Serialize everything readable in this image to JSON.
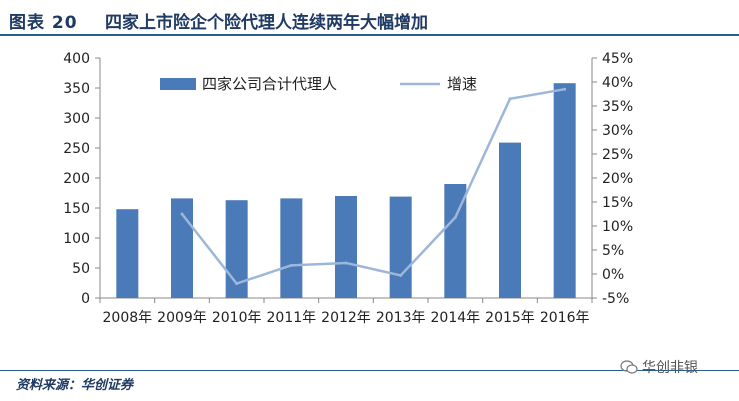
{
  "header": {
    "figure_label": "图表 20",
    "title": "四家上市险企个险代理人连续两年大幅增加"
  },
  "footer": {
    "source": "资料来源：华创证券",
    "watermark": "华创非银"
  },
  "colors": {
    "bar": "#4a7ab8",
    "line": "#9cb7da",
    "title": "#1f3a63",
    "rule": "#2c5d8f"
  },
  "chart_data": {
    "type": "bar",
    "categories": [
      "2008年",
      "2009年",
      "2010年",
      "2011年",
      "2012年",
      "2013年",
      "2014年",
      "2015年",
      "2016年"
    ],
    "series": [
      {
        "name": "四家公司合计代理人",
        "type": "bar",
        "axis": "left",
        "values": [
          148,
          166,
          163,
          166,
          170,
          169,
          190,
          259,
          358
        ]
      },
      {
        "name": "增速",
        "type": "line",
        "axis": "right",
        "values": [
          null,
          12.5,
          -2.0,
          1.8,
          2.3,
          -0.3,
          11.8,
          36.5,
          38.5
        ]
      }
    ],
    "y_left": {
      "min": 0,
      "max": 400,
      "ticks": [
        0,
        50,
        100,
        150,
        200,
        250,
        300,
        350,
        400
      ],
      "tick_labels": [
        "0",
        "50",
        "100",
        "150",
        "200",
        "250",
        "300",
        "350",
        "400"
      ]
    },
    "y_right": {
      "min": -5,
      "max": 45,
      "ticks": [
        -5,
        0,
        5,
        10,
        15,
        20,
        25,
        30,
        35,
        40,
        45
      ],
      "tick_labels": [
        "-5%",
        "0%",
        "5%",
        "10%",
        "15%",
        "20%",
        "25%",
        "30%",
        "35%",
        "40%",
        "45%"
      ]
    },
    "legend": {
      "placement": "top",
      "items": [
        "四家公司合计代理人",
        "增速"
      ]
    },
    "grid": false
  }
}
